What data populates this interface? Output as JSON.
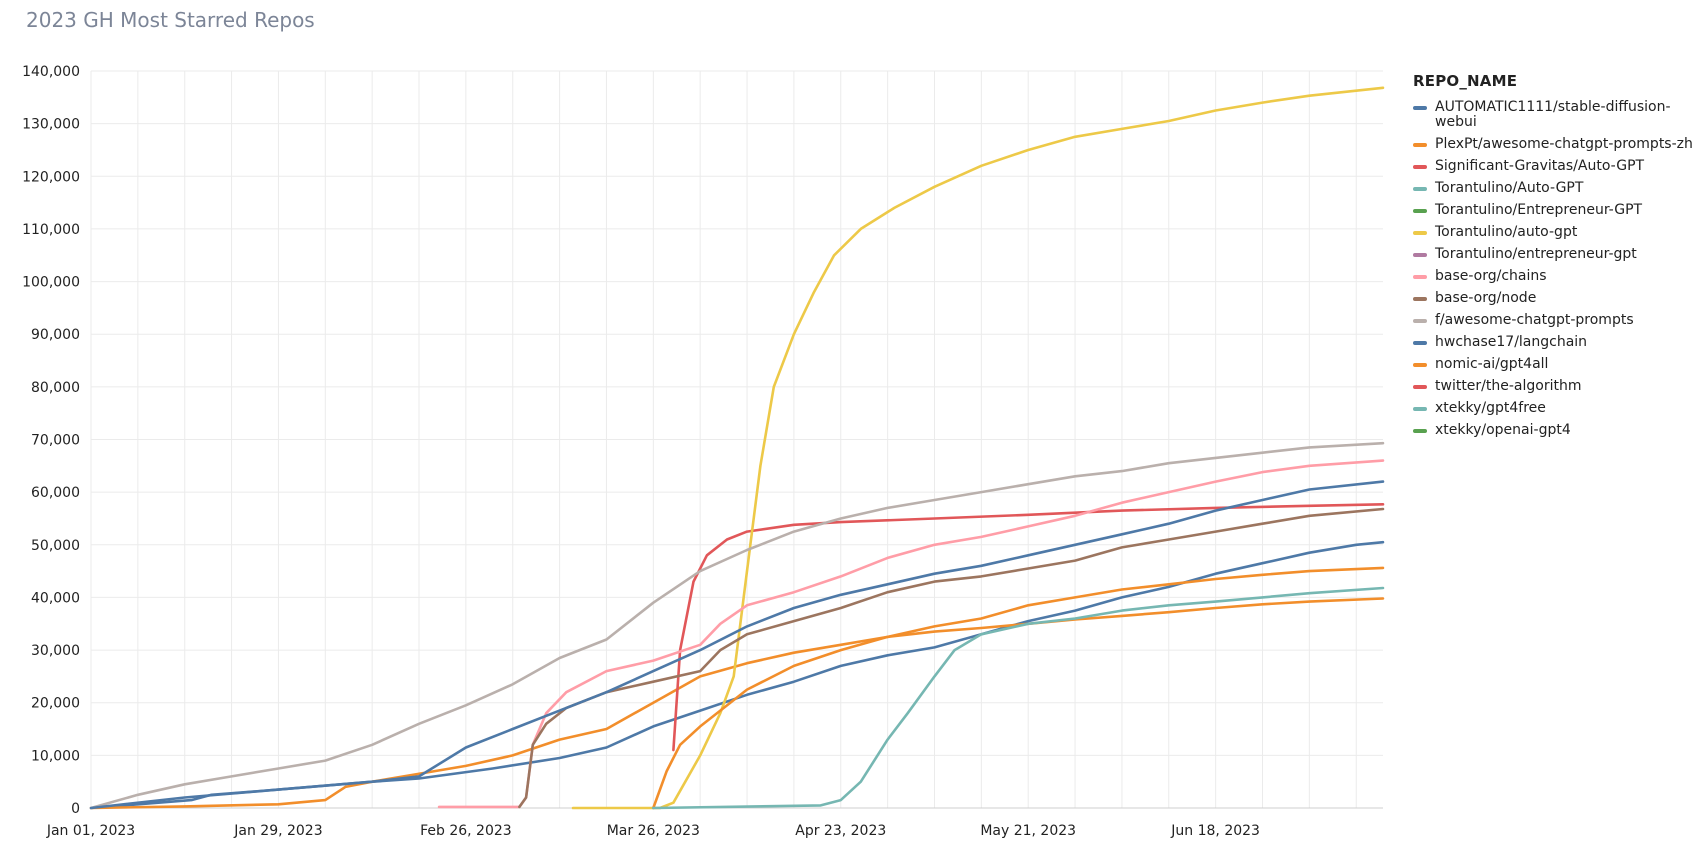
{
  "chart_data": {
    "type": "line",
    "title": "2023 GH Most Starred Repos",
    "xlabel": "",
    "ylabel": "",
    "x_range": [
      "2023-01-01",
      "2023-07-13"
    ],
    "ylim": [
      0,
      140000
    ],
    "y_ticks": [
      0,
      10000,
      20000,
      30000,
      40000,
      50000,
      60000,
      70000,
      80000,
      90000,
      100000,
      110000,
      120000,
      130000,
      140000
    ],
    "y_tick_labels": [
      "0",
      "10,000",
      "20,000",
      "30,000",
      "40,000",
      "50,000",
      "60,000",
      "70,000",
      "80,000",
      "90,000",
      "100,000",
      "110,000",
      "120,000",
      "130,000",
      "140,000"
    ],
    "x_tick_labels": [
      {
        "date": "2023-01-01",
        "label": "Jan 01, 2023"
      },
      {
        "date": "2023-01-29",
        "label": "Jan 29, 2023"
      },
      {
        "date": "2023-02-26",
        "label": "Feb 26, 2023"
      },
      {
        "date": "2023-03-26",
        "label": "Mar 26, 2023"
      },
      {
        "date": "2023-04-23",
        "label": "Apr 23, 2023"
      },
      {
        "date": "2023-05-21",
        "label": "May 21, 2023"
      },
      {
        "date": "2023-06-18",
        "label": "Jun 18, 2023"
      }
    ],
    "grid": true,
    "legend_title": "REPO_NAME",
    "legend_position": "right",
    "series": [
      {
        "name": "AUTOMATIC1111/stable-diffusion-webui",
        "color": "#4e79a7",
        "points": [
          [
            "2023-01-01",
            0
          ],
          [
            "2023-01-16",
            1500
          ],
          [
            "2023-01-19",
            2500
          ],
          [
            "2023-01-29",
            3500
          ],
          [
            "2023-02-12",
            5000
          ],
          [
            "2023-02-19",
            5600
          ],
          [
            "2023-03-02",
            7500
          ],
          [
            "2023-03-12",
            9500
          ],
          [
            "2023-03-19",
            11500
          ],
          [
            "2023-03-26",
            15500
          ],
          [
            "2023-04-02",
            18500
          ],
          [
            "2023-04-09",
            21500
          ],
          [
            "2023-04-16",
            24000
          ],
          [
            "2023-04-23",
            27000
          ],
          [
            "2023-04-30",
            29000
          ],
          [
            "2023-05-07",
            30500
          ],
          [
            "2023-05-14",
            33000
          ],
          [
            "2023-05-21",
            35500
          ],
          [
            "2023-05-28",
            37500
          ],
          [
            "2023-06-04",
            40000
          ],
          [
            "2023-06-11",
            42000
          ],
          [
            "2023-06-18",
            44500
          ],
          [
            "2023-06-25",
            46500
          ],
          [
            "2023-07-02",
            48500
          ],
          [
            "2023-07-09",
            50000
          ],
          [
            "2023-07-13",
            50500
          ]
        ]
      },
      {
        "name": "PlexPt/awesome-chatgpt-prompts-zh",
        "color": "#f28e2b",
        "points": [
          [
            "2023-01-01",
            0
          ],
          [
            "2023-01-15",
            300
          ],
          [
            "2023-01-29",
            700
          ],
          [
            "2023-02-05",
            1500
          ],
          [
            "2023-02-08",
            4000
          ],
          [
            "2023-02-12",
            5000
          ],
          [
            "2023-02-26",
            8000
          ],
          [
            "2023-03-05",
            10000
          ],
          [
            "2023-03-12",
            13000
          ],
          [
            "2023-03-19",
            15000
          ],
          [
            "2023-03-26",
            20000
          ],
          [
            "2023-04-02",
            25000
          ],
          [
            "2023-04-09",
            27500
          ],
          [
            "2023-04-16",
            29500
          ],
          [
            "2023-04-23",
            31000
          ],
          [
            "2023-04-30",
            32500
          ],
          [
            "2023-05-07",
            33500
          ],
          [
            "2023-05-14",
            34200
          ],
          [
            "2023-05-21",
            35000
          ],
          [
            "2023-05-28",
            35800
          ],
          [
            "2023-06-04",
            36500
          ],
          [
            "2023-06-11",
            37200
          ],
          [
            "2023-06-18",
            38000
          ],
          [
            "2023-06-25",
            38700
          ],
          [
            "2023-07-02",
            39200
          ],
          [
            "2023-07-13",
            39800
          ]
        ]
      },
      {
        "name": "Significant-Gravitas/Auto-GPT",
        "color": "#e15759",
        "points": [
          [
            "2023-03-29",
            11000
          ],
          [
            "2023-03-30",
            30000
          ],
          [
            "2023-04-01",
            43000
          ],
          [
            "2023-04-03",
            48000
          ],
          [
            "2023-04-06",
            51000
          ],
          [
            "2023-04-09",
            52500
          ],
          [
            "2023-04-16",
            53800
          ],
          [
            "2023-04-23",
            54300
          ],
          [
            "2023-05-07",
            55000
          ],
          [
            "2023-05-21",
            55700
          ],
          [
            "2023-06-04",
            56500
          ],
          [
            "2023-06-18",
            57000
          ],
          [
            "2023-07-02",
            57400
          ],
          [
            "2023-07-13",
            57700
          ]
        ]
      },
      {
        "name": "Torantulino/Auto-GPT",
        "color": "#76b7b2",
        "points": []
      },
      {
        "name": "Torantulino/Entrepreneur-GPT",
        "color": "#59a14f",
        "points": []
      },
      {
        "name": "Torantulino/auto-gpt",
        "color": "#edc948",
        "points": [
          [
            "2023-03-14",
            0
          ],
          [
            "2023-03-27",
            0
          ],
          [
            "2023-03-29",
            1000
          ],
          [
            "2023-04-02",
            10000
          ],
          [
            "2023-04-05",
            18000
          ],
          [
            "2023-04-07",
            25000
          ],
          [
            "2023-04-09",
            45000
          ],
          [
            "2023-04-11",
            65000
          ],
          [
            "2023-04-13",
            80000
          ],
          [
            "2023-04-16",
            90000
          ],
          [
            "2023-04-19",
            98000
          ],
          [
            "2023-04-22",
            105000
          ],
          [
            "2023-04-26",
            110000
          ],
          [
            "2023-05-01",
            114000
          ],
          [
            "2023-05-07",
            118000
          ],
          [
            "2023-05-14",
            122000
          ],
          [
            "2023-05-21",
            125000
          ],
          [
            "2023-05-28",
            127500
          ],
          [
            "2023-06-04",
            129000
          ],
          [
            "2023-06-11",
            130500
          ],
          [
            "2023-06-18",
            132500
          ],
          [
            "2023-06-25",
            134000
          ],
          [
            "2023-07-02",
            135300
          ],
          [
            "2023-07-13",
            136800
          ]
        ]
      },
      {
        "name": "Torantulino/entrepreneur-gpt",
        "color": "#b07aa1",
        "points": []
      },
      {
        "name": "base-org/chains",
        "color": "#ff9da7",
        "points": [
          [
            "2023-02-22",
            200
          ],
          [
            "2023-03-06",
            200
          ],
          [
            "2023-03-07",
            2000
          ],
          [
            "2023-03-08",
            12000
          ],
          [
            "2023-03-10",
            18000
          ],
          [
            "2023-03-13",
            22000
          ],
          [
            "2023-03-19",
            26000
          ],
          [
            "2023-03-26",
            28000
          ],
          [
            "2023-04-02",
            31000
          ],
          [
            "2023-04-05",
            35000
          ],
          [
            "2023-04-09",
            38500
          ],
          [
            "2023-04-16",
            41000
          ],
          [
            "2023-04-23",
            44000
          ],
          [
            "2023-04-30",
            47500
          ],
          [
            "2023-05-07",
            50000
          ],
          [
            "2023-05-14",
            51500
          ],
          [
            "2023-05-21",
            53500
          ],
          [
            "2023-05-28",
            55500
          ],
          [
            "2023-06-04",
            58000
          ],
          [
            "2023-06-11",
            60000
          ],
          [
            "2023-06-18",
            62000
          ],
          [
            "2023-06-25",
            63800
          ],
          [
            "2023-07-02",
            65000
          ],
          [
            "2023-07-13",
            66000
          ]
        ]
      },
      {
        "name": "base-org/node",
        "color": "#9c755f",
        "points": [
          [
            "2023-03-06",
            200
          ],
          [
            "2023-03-07",
            2000
          ],
          [
            "2023-03-08",
            12000
          ],
          [
            "2023-03-10",
            16000
          ],
          [
            "2023-03-13",
            19000
          ],
          [
            "2023-03-19",
            22000
          ],
          [
            "2023-03-26",
            24000
          ],
          [
            "2023-04-02",
            26000
          ],
          [
            "2023-04-05",
            30000
          ],
          [
            "2023-04-09",
            33000
          ],
          [
            "2023-04-16",
            35500
          ],
          [
            "2023-04-23",
            38000
          ],
          [
            "2023-04-30",
            41000
          ],
          [
            "2023-05-07",
            43000
          ],
          [
            "2023-05-14",
            44000
          ],
          [
            "2023-05-21",
            45500
          ],
          [
            "2023-05-28",
            47000
          ],
          [
            "2023-06-04",
            49500
          ],
          [
            "2023-06-11",
            51000
          ],
          [
            "2023-06-18",
            52500
          ],
          [
            "2023-06-25",
            54000
          ],
          [
            "2023-07-02",
            55500
          ],
          [
            "2023-07-13",
            56800
          ]
        ]
      },
      {
        "name": "f/awesome-chatgpt-prompts",
        "color": "#bab0ac",
        "points": [
          [
            "2023-01-01",
            0
          ],
          [
            "2023-01-08",
            2500
          ],
          [
            "2023-01-15",
            4500
          ],
          [
            "2023-01-22",
            6000
          ],
          [
            "2023-01-29",
            7500
          ],
          [
            "2023-02-05",
            9000
          ],
          [
            "2023-02-12",
            12000
          ],
          [
            "2023-02-19",
            16000
          ],
          [
            "2023-02-26",
            19500
          ],
          [
            "2023-03-05",
            23500
          ],
          [
            "2023-03-12",
            28500
          ],
          [
            "2023-03-19",
            32000
          ],
          [
            "2023-03-26",
            39000
          ],
          [
            "2023-04-02",
            45000
          ],
          [
            "2023-04-09",
            49000
          ],
          [
            "2023-04-16",
            52500
          ],
          [
            "2023-04-23",
            55000
          ],
          [
            "2023-04-30",
            57000
          ],
          [
            "2023-05-07",
            58500
          ],
          [
            "2023-05-14",
            60000
          ],
          [
            "2023-05-21",
            61500
          ],
          [
            "2023-05-28",
            63000
          ],
          [
            "2023-06-04",
            64000
          ],
          [
            "2023-06-11",
            65500
          ],
          [
            "2023-06-18",
            66500
          ],
          [
            "2023-06-25",
            67500
          ],
          [
            "2023-07-02",
            68500
          ],
          [
            "2023-07-13",
            69300
          ]
        ]
      },
      {
        "name": "hwchase17/langchain",
        "color": "#4e79a7",
        "points": [
          [
            "2023-01-01",
            0
          ],
          [
            "2023-01-15",
            2000
          ],
          [
            "2023-01-29",
            3500
          ],
          [
            "2023-02-12",
            5000
          ],
          [
            "2023-02-19",
            6000
          ],
          [
            "2023-02-26",
            11500
          ],
          [
            "2023-03-05",
            15000
          ],
          [
            "2023-03-12",
            18500
          ],
          [
            "2023-03-19",
            22000
          ],
          [
            "2023-03-26",
            26000
          ],
          [
            "2023-04-02",
            30000
          ],
          [
            "2023-04-09",
            34500
          ],
          [
            "2023-04-16",
            38000
          ],
          [
            "2023-04-23",
            40500
          ],
          [
            "2023-04-30",
            42500
          ],
          [
            "2023-05-07",
            44500
          ],
          [
            "2023-05-14",
            46000
          ],
          [
            "2023-05-21",
            48000
          ],
          [
            "2023-05-28",
            50000
          ],
          [
            "2023-06-04",
            52000
          ],
          [
            "2023-06-11",
            54000
          ],
          [
            "2023-06-18",
            56500
          ],
          [
            "2023-06-25",
            58500
          ],
          [
            "2023-07-02",
            60500
          ],
          [
            "2023-07-13",
            62000
          ]
        ]
      },
      {
        "name": "nomic-ai/gpt4all",
        "color": "#f28e2b",
        "points": [
          [
            "2023-03-26",
            0
          ],
          [
            "2023-03-28",
            7000
          ],
          [
            "2023-03-30",
            12000
          ],
          [
            "2023-04-02",
            15500
          ],
          [
            "2023-04-05",
            18500
          ],
          [
            "2023-04-09",
            22500
          ],
          [
            "2023-04-16",
            27000
          ],
          [
            "2023-04-23",
            30000
          ],
          [
            "2023-04-30",
            32500
          ],
          [
            "2023-05-07",
            34500
          ],
          [
            "2023-05-14",
            36000
          ],
          [
            "2023-05-21",
            38500
          ],
          [
            "2023-05-28",
            40000
          ],
          [
            "2023-06-04",
            41500
          ],
          [
            "2023-06-11",
            42500
          ],
          [
            "2023-06-18",
            43500
          ],
          [
            "2023-06-25",
            44300
          ],
          [
            "2023-07-02",
            45000
          ],
          [
            "2023-07-13",
            45600
          ]
        ]
      },
      {
        "name": "twitter/the-algorithm",
        "color": "#e15759",
        "points": []
      },
      {
        "name": "xtekky/gpt4free",
        "color": "#76b7b2",
        "points": [
          [
            "2023-03-26",
            0
          ],
          [
            "2023-04-20",
            500
          ],
          [
            "2023-04-23",
            1500
          ],
          [
            "2023-04-26",
            5000
          ],
          [
            "2023-04-30",
            13000
          ],
          [
            "2023-05-03",
            18000
          ],
          [
            "2023-05-07",
            25000
          ],
          [
            "2023-05-10",
            30000
          ],
          [
            "2023-05-14",
            33000
          ],
          [
            "2023-05-21",
            35000
          ],
          [
            "2023-05-28",
            36000
          ],
          [
            "2023-06-04",
            37500
          ],
          [
            "2023-06-11",
            38500
          ],
          [
            "2023-06-18",
            39200
          ],
          [
            "2023-06-25",
            40000
          ],
          [
            "2023-07-02",
            40800
          ],
          [
            "2023-07-13",
            41800
          ]
        ]
      },
      {
        "name": "xtekky/openai-gpt4",
        "color": "#59a14f",
        "points": []
      }
    ]
  }
}
